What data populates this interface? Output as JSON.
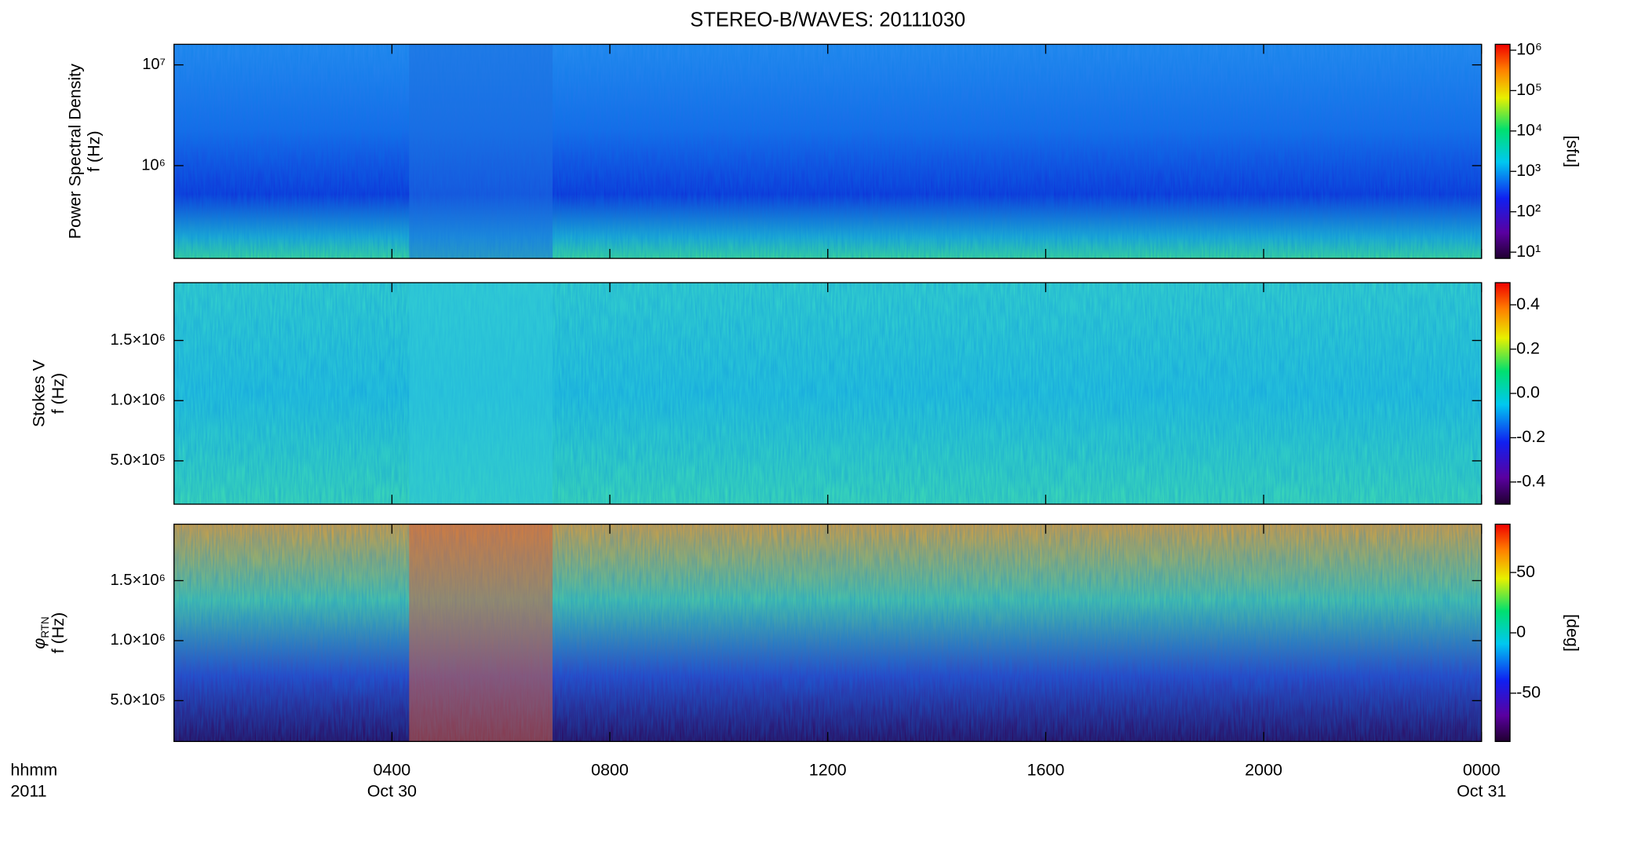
{
  "chart_data": [
    {
      "type": "spectrogram",
      "title": "STEREO-B/WAVES: 20111030",
      "ylabel": [
        "Power Spectral Density",
        "f (Hz)"
      ],
      "xlim": [
        0,
        24
      ],
      "xticks": [
        4,
        8,
        12,
        16,
        20,
        24
      ],
      "yscale": "log",
      "ylim": [
        120000,
        16000000
      ],
      "yticks": [
        {
          "value": 1000000,
          "label": "10⁶"
        },
        {
          "value": 10000000,
          "label": "10⁷"
        }
      ],
      "cscale": "log",
      "clim": [
        7,
        1400000
      ],
      "cticks": [
        {
          "value": 10,
          "label": "10¹"
        },
        {
          "value": 100,
          "label": "10²"
        },
        {
          "value": 1000,
          "label": "10³"
        },
        {
          "value": 10000,
          "label": "10⁴"
        },
        {
          "value": 100000,
          "label": "10⁵"
        },
        {
          "value": 1000000,
          "label": "10⁶"
        }
      ],
      "clabel": "[sfu]",
      "colormap": "rainbow"
    },
    {
      "type": "spectrogram",
      "ylabel": [
        "Stokes V",
        "f (Hz)"
      ],
      "xlim": [
        0,
        24
      ],
      "xticks": [
        4,
        8,
        12,
        16,
        20,
        24
      ],
      "yscale": "linear",
      "ylim": [
        140000,
        1980000
      ],
      "yticks": [
        {
          "value": 500000,
          "label": "5.0×10⁵"
        },
        {
          "value": 1000000,
          "label": "1.0×10⁶"
        },
        {
          "value": 1500000,
          "label": "1.5×10⁶"
        }
      ],
      "cscale": "linear",
      "clim": [
        -0.5,
        0.5
      ],
      "cticks": [
        -0.4,
        -0.2,
        {
          "value": 0,
          "label": "0.0"
        },
        0.2,
        0.4
      ],
      "colormap": "rainbow"
    },
    {
      "type": "spectrogram",
      "ylabel": [
        "φ",
        "RTN",
        "f (Hz)"
      ],
      "xlim": [
        0,
        24
      ],
      "xticks": [
        {
          "value": 4,
          "label": "0400"
        },
        {
          "value": 8,
          "label": "0800"
        },
        {
          "value": 12,
          "label": "1200"
        },
        {
          "value": 16,
          "label": "1600"
        },
        {
          "value": 20,
          "label": "2000"
        },
        {
          "value": 24,
          "label": "0000"
        }
      ],
      "date_labels": [
        {
          "value": 4,
          "label": "Oct 30"
        },
        {
          "value": 24,
          "label": "Oct 31"
        }
      ],
      "x_label_lines": [
        "hhmm",
        "2011"
      ],
      "yscale": "linear",
      "ylim": [
        160000,
        1970000
      ],
      "yticks": [
        {
          "value": 500000,
          "label": "5.0×10⁵"
        },
        {
          "value": 1000000,
          "label": "1.0×10⁶"
        },
        {
          "value": 1500000,
          "label": "1.5×10⁶"
        }
      ],
      "cscale": "linear",
      "clim": [
        -90,
        90
      ],
      "cticks": [
        -50,
        0,
        50
      ],
      "clabel": "[deg]",
      "colormap": "rainbow"
    }
  ]
}
